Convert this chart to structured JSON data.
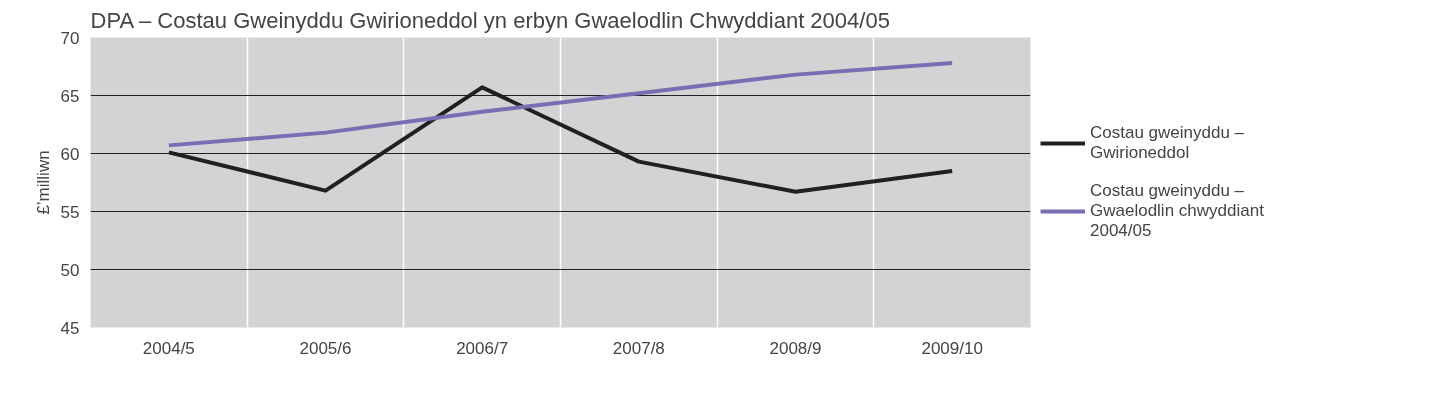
{
  "chart_data": {
    "type": "line",
    "title": "DPA – Costau Gweinyddu Gwirioneddol yn erbyn Gwaelodlin Chwyddiant 2004/05",
    "ylabel": "£’milliwn",
    "categories": [
      "2004/5",
      "2005/6",
      "2006/7",
      "2007/8",
      "2008/9",
      "2009/10"
    ],
    "series": [
      {
        "name": "Costau gweinyddu – Gwirioneddol",
        "color": "#231f20",
        "values": [
          60.1,
          56.8,
          65.7,
          59.3,
          56.7,
          58.5
        ]
      },
      {
        "name": "Costau gweinyddu – Gwaelodlin chwyddiant 2004/05",
        "color": "#7b6db4",
        "values": [
          60.7,
          61.8,
          63.6,
          65.2,
          66.8,
          67.8
        ]
      }
    ],
    "ylim": [
      45,
      70
    ],
    "yticks": [
      45,
      50,
      55,
      60,
      65,
      70
    ],
    "grid": true,
    "legend": "right",
    "line_style": "solid",
    "marker": "none"
  }
}
